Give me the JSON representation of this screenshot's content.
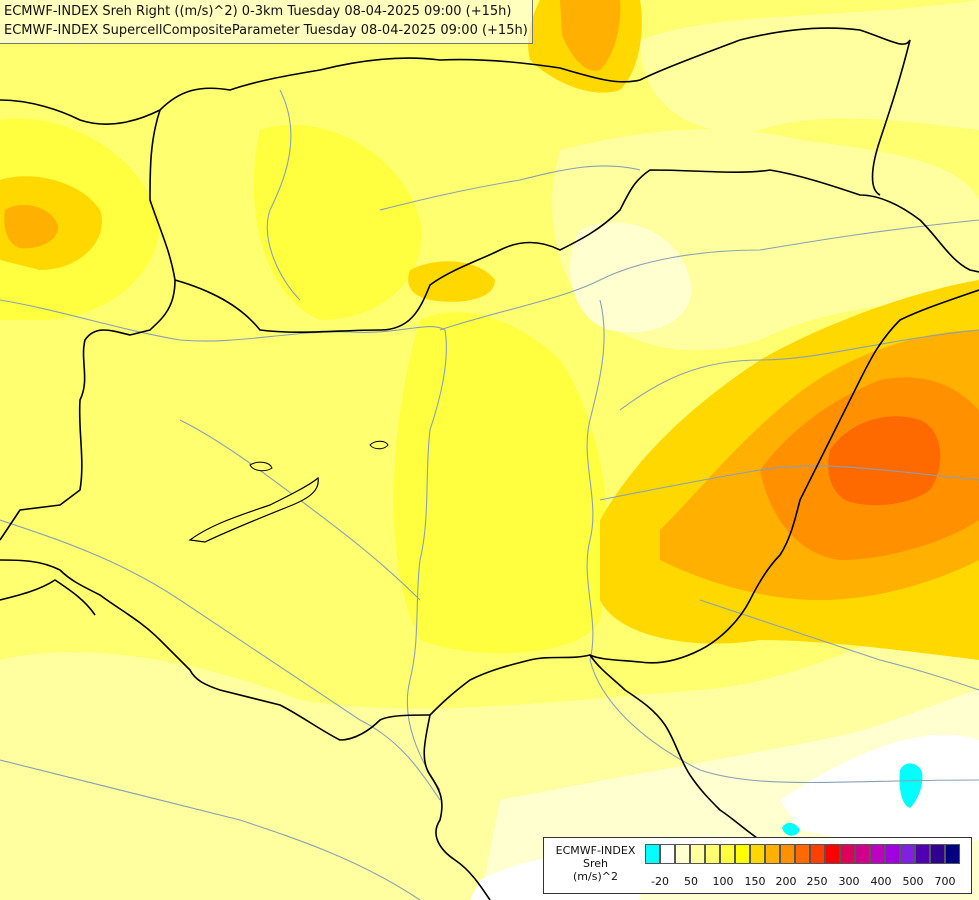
{
  "title": {
    "line1": "ECMWF-INDEX Sreh Right ((m/s)^2) 0-3km Tuesday 08-04-2025 09:00 (+15h)",
    "line2": "ECMWF-INDEX SupercellCompositeParameter Tuesday 08-04-2025 09:00 (+15h)"
  },
  "legend": {
    "model": "ECMWF-INDEX",
    "param": "Sreh",
    "unit": "(m/s)^2",
    "colors": [
      "#00ffff",
      "#ffffff",
      "#ffffd0",
      "#ffffa0",
      "#ffff70",
      "#ffff40",
      "#ffff00",
      "#ffd800",
      "#ffb000",
      "#ff9000",
      "#ff6a00",
      "#ff4000",
      "#ff0000",
      "#e0005a",
      "#d0008a",
      "#c000c0",
      "#a000e0",
      "#8020e0",
      "#5000b0",
      "#300090",
      "#000080"
    ],
    "ticks": [
      "-20",
      "50",
      "100",
      "150",
      "200",
      "250",
      "300",
      "400",
      "500",
      "700"
    ]
  },
  "colors": {
    "border": "#000000",
    "river": "#8aa0b4"
  }
}
